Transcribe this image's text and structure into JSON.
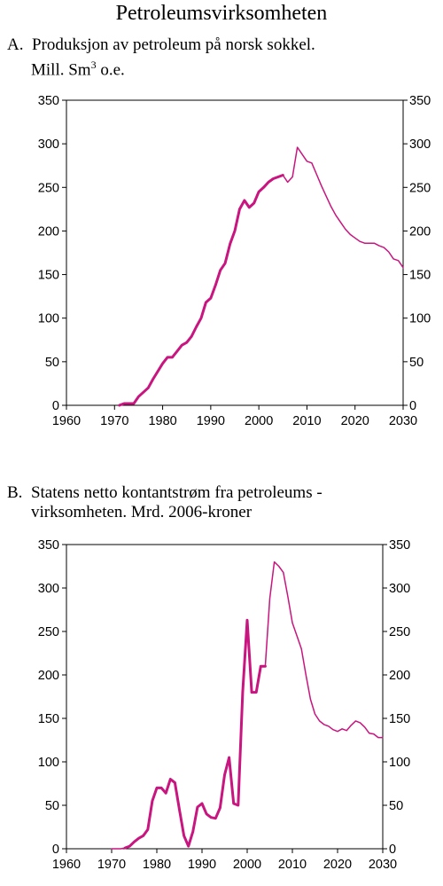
{
  "title": "Petroleumsvirksomheten",
  "colors": {
    "line": "#c8157f",
    "axis": "#000000"
  },
  "chart_data": [
    {
      "type": "line",
      "panel_label": "A.",
      "title_line1": "Produksjon av petroleum på norsk sokkel.",
      "title_line2_prefix": "Mill. Sm",
      "title_superscript": "3",
      "title_line2_suffix": " o.e.",
      "xlim": [
        1960,
        2030
      ],
      "ylim": [
        0,
        350
      ],
      "x_ticks": [
        1960,
        1970,
        1980,
        1990,
        2000,
        2010,
        2020,
        2030
      ],
      "y_ticks": [
        0,
        50,
        100,
        150,
        200,
        250,
        300,
        350
      ],
      "grid": false,
      "series": [
        {
          "style": "thick",
          "x": [
            1971,
            1972,
            1974,
            1975,
            1977,
            1978,
            1980,
            1981,
            1982,
            1983,
            1984,
            1985,
            1986,
            1987,
            1988,
            1989,
            1990,
            1991,
            1992,
            1993,
            1994,
            1995,
            1996,
            1997,
            1998,
            1999,
            2000,
            2001,
            2002,
            2003,
            2004,
            2005
          ],
          "y": [
            0,
            2,
            2,
            10,
            20,
            30,
            48,
            55,
            55,
            62,
            69,
            72,
            79,
            90,
            100,
            118,
            123,
            138,
            155,
            163,
            185,
            200,
            225,
            235,
            227,
            232,
            245,
            250,
            256,
            260,
            262,
            264
          ]
        },
        {
          "style": "thin",
          "x": [
            2005,
            2006,
            2007,
            2008,
            2009,
            2010,
            2011,
            2012,
            2013,
            2014,
            2015,
            2016,
            2017,
            2018,
            2019,
            2020,
            2021,
            2022,
            2023,
            2024,
            2025,
            2026,
            2027,
            2028,
            2029,
            2030
          ],
          "y": [
            264,
            256,
            262,
            296,
            288,
            280,
            278,
            265,
            252,
            240,
            228,
            218,
            210,
            202,
            196,
            192,
            188,
            186,
            186,
            186,
            183,
            181,
            176,
            168,
            166,
            158
          ]
        }
      ]
    },
    {
      "type": "line",
      "panel_label": "B.",
      "title_line1": "Statens netto kontantstrøm fra petroleums -",
      "title_line2": "virksomheten. Mrd. 2006-kroner",
      "xlim": [
        1960,
        2030
      ],
      "ylim": [
        0,
        350
      ],
      "x_ticks": [
        1960,
        1970,
        1980,
        1990,
        2000,
        2010,
        2020,
        2030
      ],
      "y_ticks": [
        0,
        50,
        100,
        150,
        200,
        250,
        300,
        350
      ],
      "grid": false,
      "series": [
        {
          "style": "thin",
          "x": [
            1970,
            1971,
            1972,
            1973
          ],
          "y": [
            0,
            0,
            0,
            1
          ]
        },
        {
          "style": "thick",
          "x": [
            1973,
            1974,
            1975,
            1976,
            1977,
            1978,
            1979,
            1980,
            1981,
            1982,
            1983,
            1984,
            1985,
            1986,
            1987,
            1988,
            1989,
            1990,
            1991,
            1992,
            1993,
            1994,
            1995,
            1996,
            1997,
            1998,
            1999,
            2000,
            2001,
            2002,
            2003,
            2004
          ],
          "y": [
            1,
            3,
            8,
            12,
            15,
            22,
            55,
            70,
            70,
            64,
            80,
            76,
            45,
            15,
            3,
            20,
            48,
            52,
            40,
            36,
            35,
            47,
            85,
            105,
            52,
            50,
            180,
            263,
            180,
            180,
            210,
            210
          ]
        },
        {
          "style": "thin",
          "x": [
            2004,
            2005,
            2006,
            2007,
            2008,
            2009,
            2010,
            2011,
            2012,
            2013,
            2014,
            2015,
            2016,
            2017,
            2018,
            2019,
            2020,
            2021,
            2022,
            2023,
            2024,
            2025,
            2026,
            2027,
            2028,
            2029,
            2030
          ],
          "y": [
            210,
            288,
            330,
            325,
            318,
            290,
            260,
            245,
            230,
            200,
            172,
            155,
            147,
            143,
            141,
            137,
            135,
            138,
            136,
            142,
            147,
            145,
            140,
            133,
            132,
            128,
            128
          ]
        }
      ]
    }
  ]
}
